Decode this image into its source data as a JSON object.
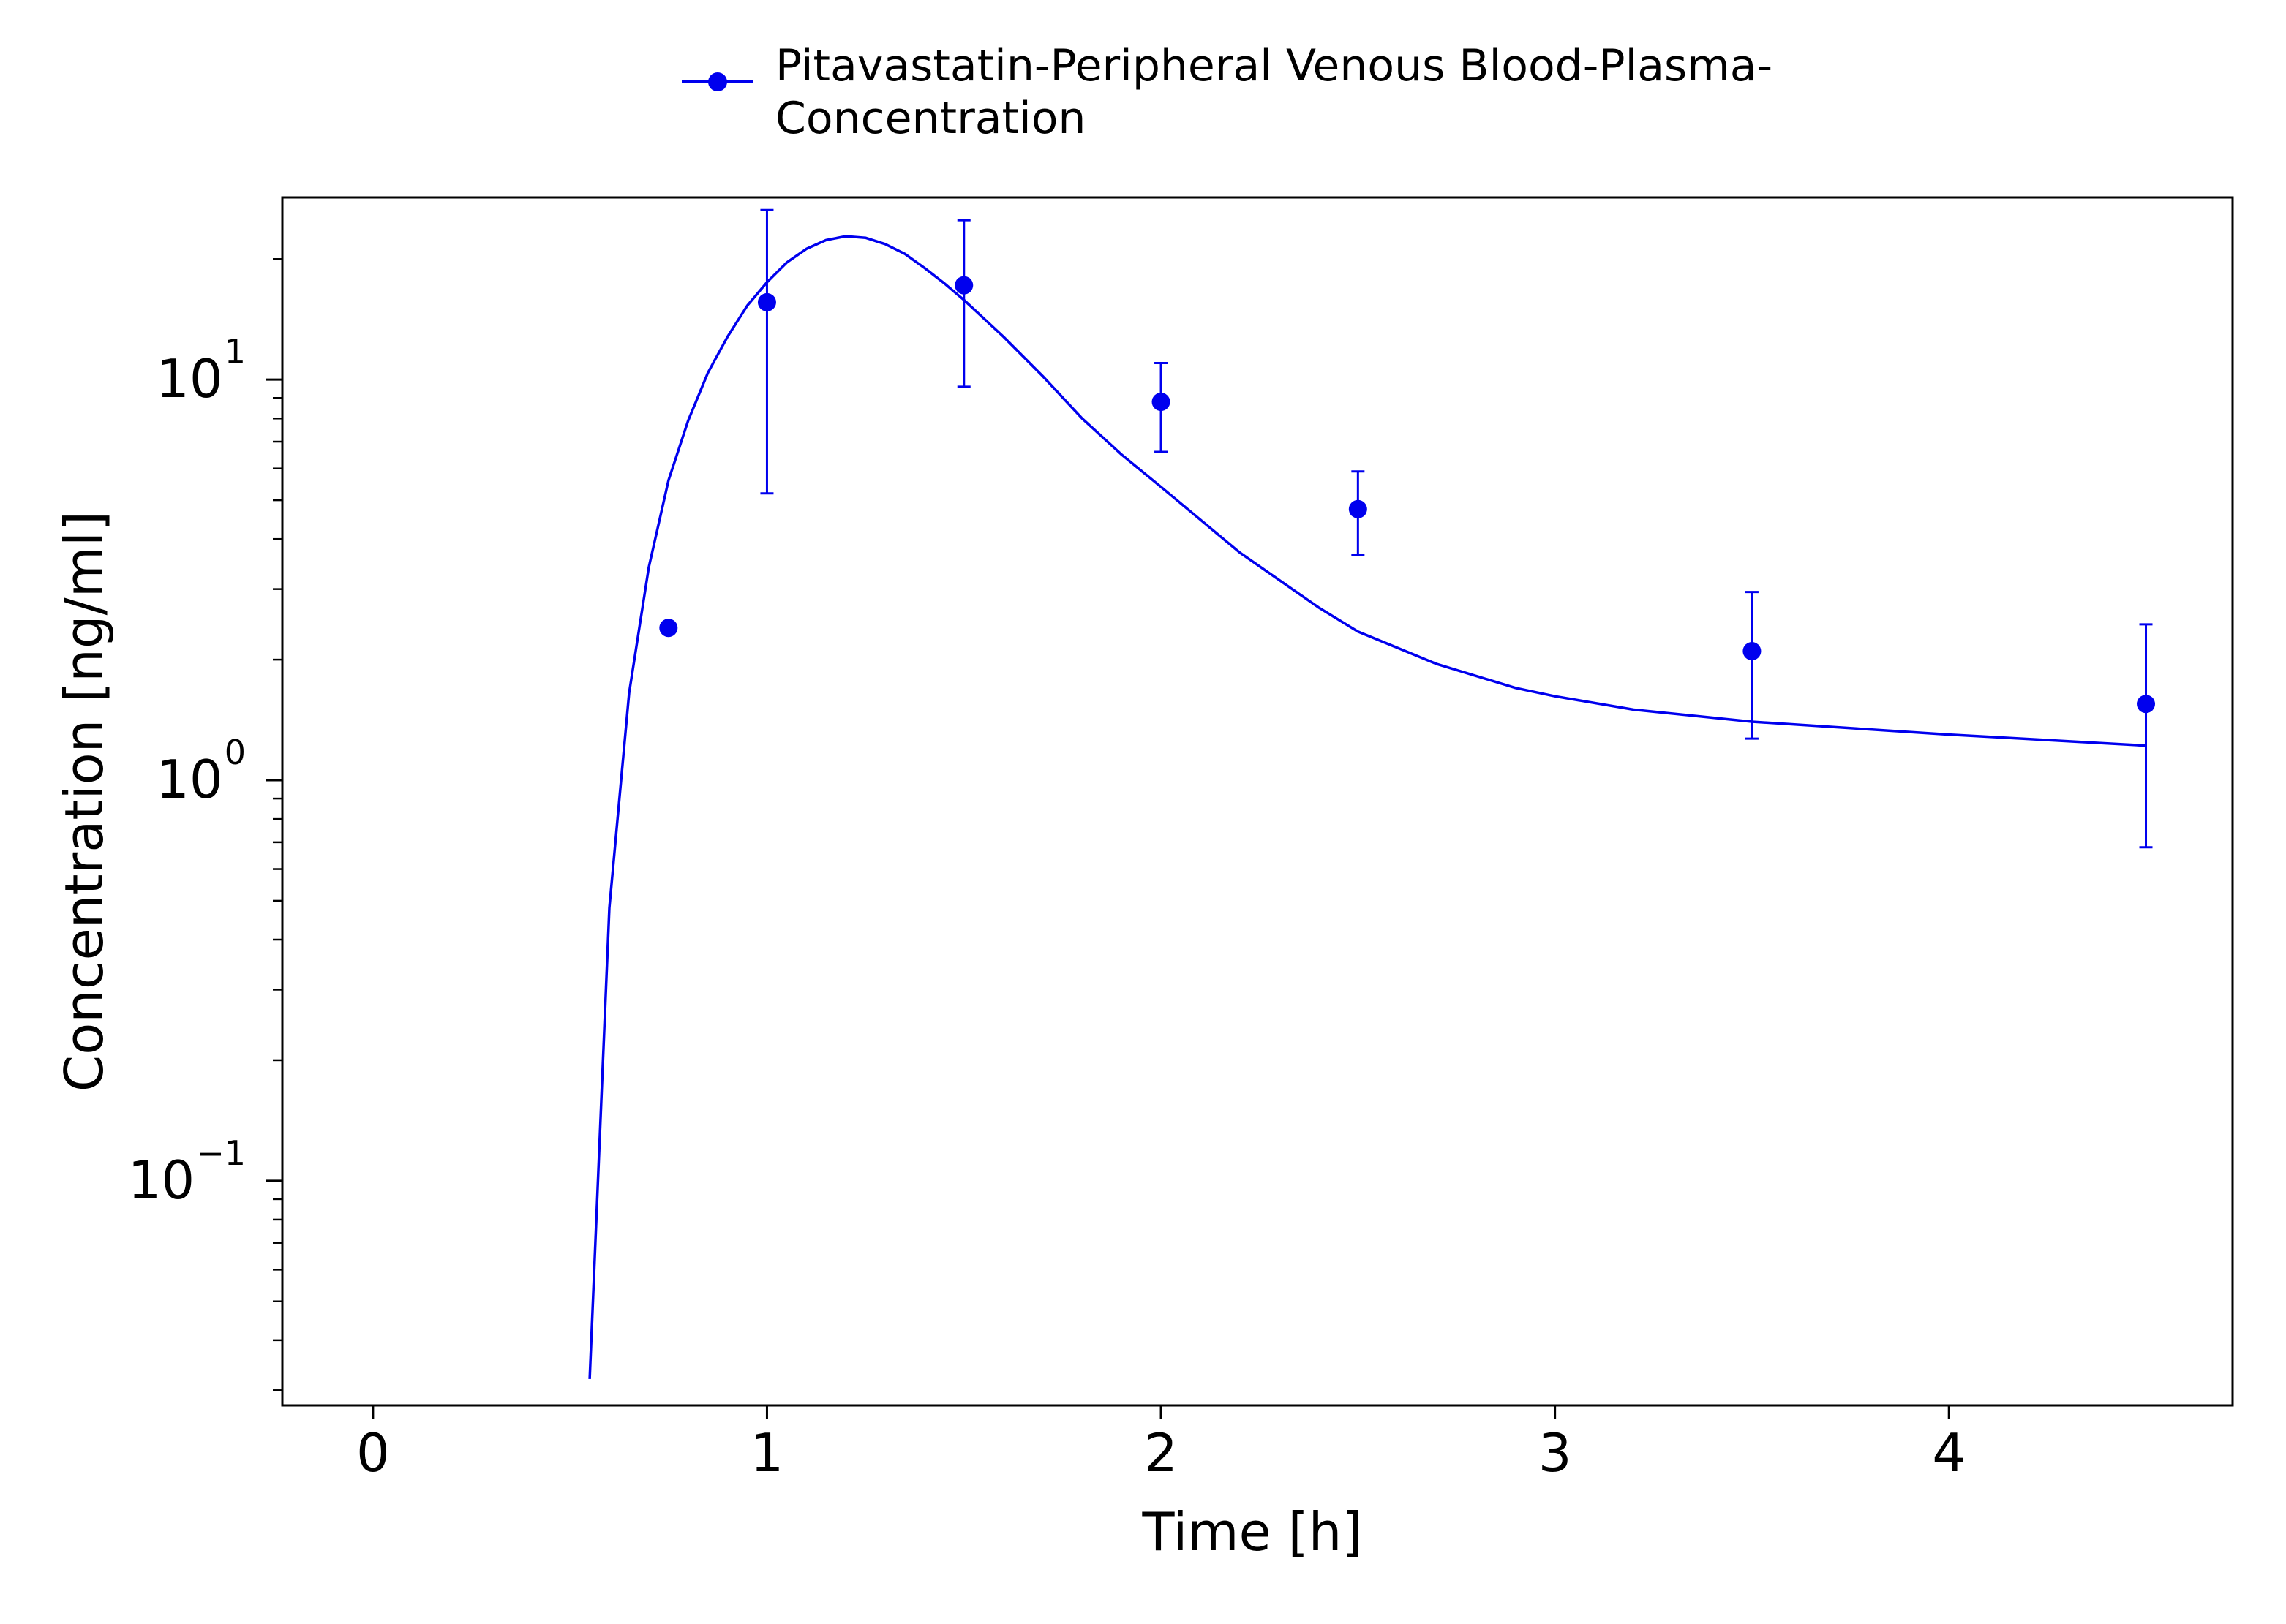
{
  "chart_data": {
    "type": "line",
    "legend": {
      "position": "top-center",
      "label_line1": "Pitavastatin-Peripheral Venous Blood-Plasma-",
      "label_line2": "Concentration"
    },
    "xlabel": "Time [h]",
    "ylabel": "Concentration [ng/ml]",
    "xlim": [
      -0.23,
      4.72
    ],
    "ylim": [
      0.0275,
      28.5
    ],
    "yscale": "log",
    "grid": false,
    "x_ticks": [
      {
        "value": 0,
        "label": "0"
      },
      {
        "value": 1,
        "label": "1"
      },
      {
        "value": 2,
        "label": "2"
      },
      {
        "value": 3,
        "label": "3"
      },
      {
        "value": 4,
        "label": "4"
      }
    ],
    "y_ticks": [
      {
        "value": 0.1,
        "base": "10",
        "exp": "−1"
      },
      {
        "value": 1,
        "base": "10",
        "exp": "0"
      },
      {
        "value": 10,
        "base": "10",
        "exp": "1"
      }
    ],
    "series": [
      {
        "name": "Pitavastatin-Peripheral Venous Blood-Plasma-Concentration",
        "color": "#0000ee",
        "simulation": {
          "x": [
            0.55,
            0.6,
            0.65,
            0.7,
            0.75,
            0.8,
            0.85,
            0.9,
            0.95,
            1.0,
            1.05,
            1.1,
            1.15,
            1.2,
            1.25,
            1.3,
            1.35,
            1.4,
            1.45,
            1.5,
            1.6,
            1.7,
            1.8,
            1.9,
            2.0,
            2.2,
            2.4,
            2.5,
            2.7,
            2.9,
            3.0,
            3.2,
            3.5,
            4.0,
            4.5
          ],
          "y": [
            0.032,
            0.48,
            1.65,
            3.4,
            5.6,
            7.9,
            10.4,
            12.8,
            15.3,
            17.5,
            19.6,
            21.2,
            22.3,
            22.8,
            22.6,
            21.8,
            20.6,
            19.0,
            17.4,
            15.8,
            12.8,
            10.2,
            8.0,
            6.5,
            5.4,
            3.7,
            2.7,
            2.35,
            1.95,
            1.7,
            1.62,
            1.5,
            1.4,
            1.3,
            1.22
          ]
        },
        "observed": [
          {
            "x": 0.75,
            "y": 2.4
          },
          {
            "x": 1.0,
            "y": 15.6,
            "err_low": 5.2,
            "err_high": 26.5
          },
          {
            "x": 1.5,
            "y": 17.2,
            "err_low": 9.6,
            "err_high": 25.0
          },
          {
            "x": 2.0,
            "y": 8.8,
            "err_low": 6.6,
            "err_high": 11.0
          },
          {
            "x": 2.5,
            "y": 4.75,
            "err_low": 3.65,
            "err_high": 5.9
          },
          {
            "x": 3.5,
            "y": 2.1,
            "err_low": 1.27,
            "err_high": 2.95
          },
          {
            "x": 4.5,
            "y": 1.55,
            "err_low": 0.68,
            "err_high": 2.45
          }
        ]
      }
    ]
  }
}
